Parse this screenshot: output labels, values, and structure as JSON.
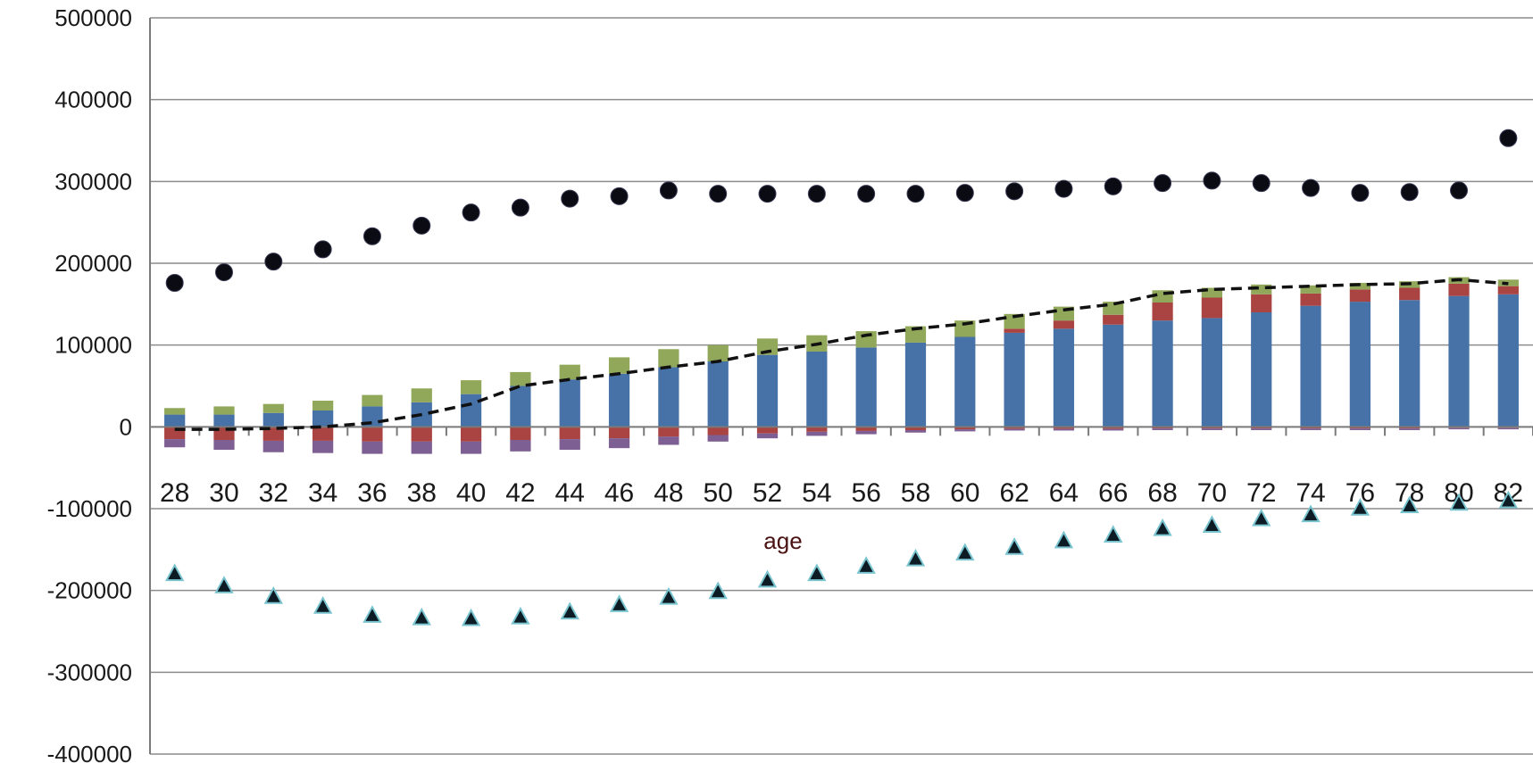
{
  "chart_data": {
    "type": "bar",
    "xlabel": "age",
    "ylabel": "",
    "ylim": [
      -400000,
      500000
    ],
    "yticks": [
      "500000",
      "400000",
      "300000",
      "200000",
      "100000",
      "0",
      "-100000",
      "-200000",
      "-300000",
      "-400000"
    ],
    "grid": true,
    "legend": "none",
    "categories": [
      "28",
      "30",
      "32",
      "34",
      "36",
      "38",
      "40",
      "42",
      "44",
      "46",
      "48",
      "50",
      "52",
      "54",
      "56",
      "58",
      "60",
      "62",
      "64",
      "66",
      "68",
      "70",
      "72",
      "74",
      "76",
      "78",
      "80",
      "82"
    ],
    "colors": {
      "blue": "#4672a8",
      "red": "#a94442",
      "green": "#91a75a",
      "purple": "#7d5f93",
      "line": "#111111",
      "circle": "#0b0b14",
      "triangle": "#0d1b24",
      "triangle_edge": "#79c4cf",
      "grid": "#8c8c8c",
      "axis": "#7a7a7a"
    },
    "series": [
      {
        "kind": "bar_positive",
        "color_key": "blue",
        "values": [
          15000,
          15000,
          17000,
          20000,
          25000,
          30000,
          40000,
          50000,
          58000,
          65000,
          73000,
          80000,
          88000,
          92000,
          97000,
          103000,
          110000,
          115000,
          120000,
          125000,
          130000,
          133000,
          140000,
          148000,
          153000,
          155000,
          160000,
          162000
        ]
      },
      {
        "kind": "bar_positive",
        "color_key": "red",
        "values": [
          0,
          0,
          0,
          0,
          0,
          0,
          0,
          0,
          0,
          0,
          0,
          0,
          0,
          0,
          0,
          0,
          0,
          5000,
          10000,
          12000,
          22000,
          25000,
          22000,
          15000,
          15000,
          15000,
          15000,
          10000
        ]
      },
      {
        "kind": "bar_positive",
        "color_key": "green",
        "values": [
          8000,
          10000,
          11000,
          12000,
          14000,
          17000,
          17000,
          17000,
          18000,
          20000,
          22000,
          20000,
          20000,
          20000,
          20000,
          20000,
          20000,
          18000,
          17000,
          16000,
          15000,
          12000,
          12000,
          10000,
          8000,
          8000,
          8000,
          8000
        ]
      },
      {
        "kind": "bar_negative",
        "color_key": "red",
        "values": [
          -15000,
          -16000,
          -17000,
          -17000,
          -18000,
          -18000,
          -18000,
          -16000,
          -15000,
          -14000,
          -12000,
          -10000,
          -8000,
          -6000,
          -5000,
          -4000,
          -3000,
          -2500,
          -2500,
          -2500,
          -2000,
          -2000,
          -2000,
          -2000,
          -2000,
          -2000,
          -1500,
          -1500
        ]
      },
      {
        "kind": "bar_negative",
        "color_key": "purple",
        "values": [
          -10000,
          -12000,
          -14000,
          -15000,
          -15000,
          -15000,
          -15000,
          -14000,
          -13000,
          -12000,
          -10000,
          -8000,
          -6000,
          -5000,
          -4000,
          -3000,
          -2500,
          -2000,
          -2000,
          -2000,
          -2000,
          -2000,
          -2000,
          -2000,
          -2000,
          -2000,
          -1500,
          -1500
        ]
      },
      {
        "kind": "line_dashed",
        "color_key": "line",
        "values": [
          -3000,
          -3000,
          -2000,
          0,
          5000,
          15000,
          28000,
          50000,
          58000,
          65000,
          73000,
          80000,
          92000,
          101000,
          112000,
          120000,
          126000,
          135000,
          143000,
          150000,
          163000,
          168000,
          170000,
          172000,
          174000,
          175000,
          180000,
          175000
        ]
      },
      {
        "kind": "scatter_circle",
        "color_key": "circle",
        "values": [
          176000,
          189000,
          202000,
          217000,
          233000,
          246000,
          262000,
          268000,
          279000,
          282000,
          289000,
          285000,
          285000,
          285000,
          285000,
          285000,
          286000,
          288000,
          291000,
          294000,
          298000,
          301000,
          298000,
          292000,
          286000,
          287000,
          289000,
          353000
        ]
      },
      {
        "kind": "scatter_triangle",
        "color_key": "triangle",
        "values": [
          -179000,
          -194000,
          -207000,
          -219000,
          -230000,
          -233000,
          -234000,
          -232000,
          -226000,
          -217000,
          -208000,
          -201000,
          -187000,
          -179000,
          -170000,
          -161000,
          -154000,
          -147000,
          -139000,
          -132000,
          -124000,
          -120000,
          -112000,
          -107000,
          -99000,
          -96000,
          -93000,
          -90000
        ]
      }
    ]
  }
}
